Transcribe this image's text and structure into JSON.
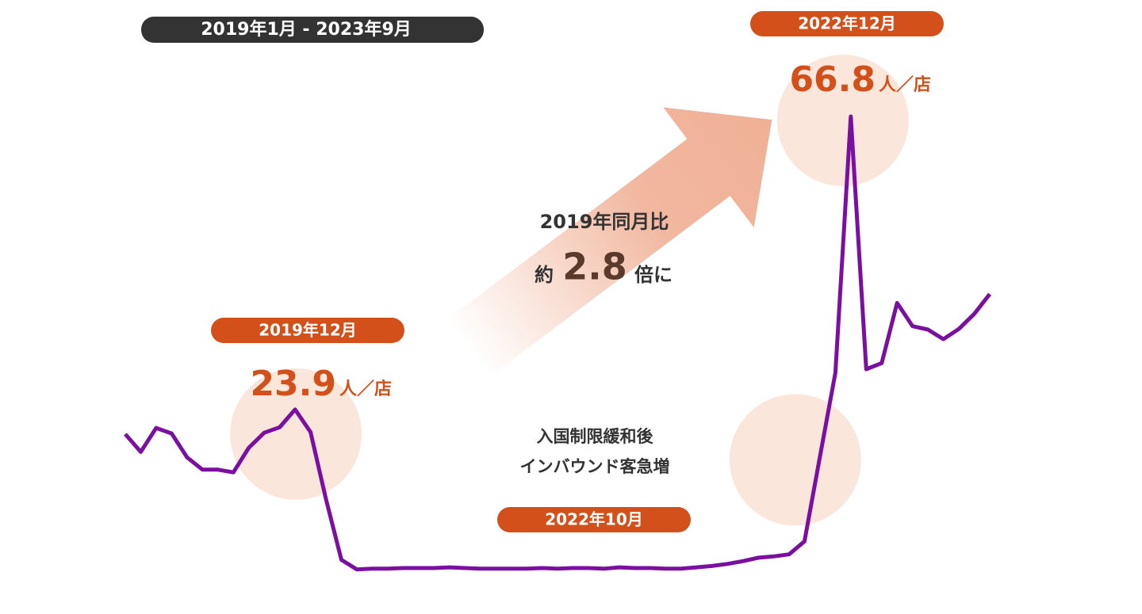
{
  "chart_data": {
    "type": "line",
    "subtitle": "2019年1月 - 2023年9月",
    "unit": "人／店",
    "ratio_note": {
      "line1": "2019年同月比",
      "prefix": "約",
      "ratio": 2.8,
      "suffix": "倍に"
    },
    "event_note": [
      "入国制限緩和後",
      "インバウンド客急増"
    ],
    "categories": [
      null,
      null,
      null,
      null,
      null,
      null,
      null,
      null,
      null,
      null,
      null,
      "2019年12月",
      null,
      null,
      null,
      null,
      null,
      null,
      null,
      null,
      null,
      null,
      null,
      null,
      null,
      null,
      null,
      null,
      null,
      null,
      null,
      null,
      null,
      null,
      null,
      null,
      null,
      null,
      null,
      null,
      null,
      null,
      null,
      null,
      null,
      "2022年10月",
      null,
      "2022年12月",
      null,
      null,
      null,
      null,
      null,
      null,
      null,
      null,
      null
    ],
    "series": [
      {
        "color": "#7b0fa0",
        "values": [
          20.3,
          17.7,
          21.2,
          20.4,
          16.9,
          15.1,
          15.1,
          14.7,
          18.3,
          20.5,
          21.3,
          23.9,
          20.6,
          10.8,
          1.9,
          0.5,
          0.6,
          0.6,
          0.7,
          0.7,
          0.7,
          0.8,
          0.7,
          0.6,
          0.6,
          0.6,
          0.6,
          0.7,
          0.6,
          0.7,
          0.7,
          0.6,
          0.8,
          0.7,
          0.7,
          0.6,
          0.6,
          0.8,
          1.0,
          1.3,
          1.7,
          2.2,
          2.4,
          2.7,
          4.6,
          17.0,
          29.3,
          66.8,
          29.8,
          30.7,
          39.5,
          36.1,
          35.6,
          34.2,
          35.7,
          37.9,
          40.8
        ]
      }
    ]
  }
}
